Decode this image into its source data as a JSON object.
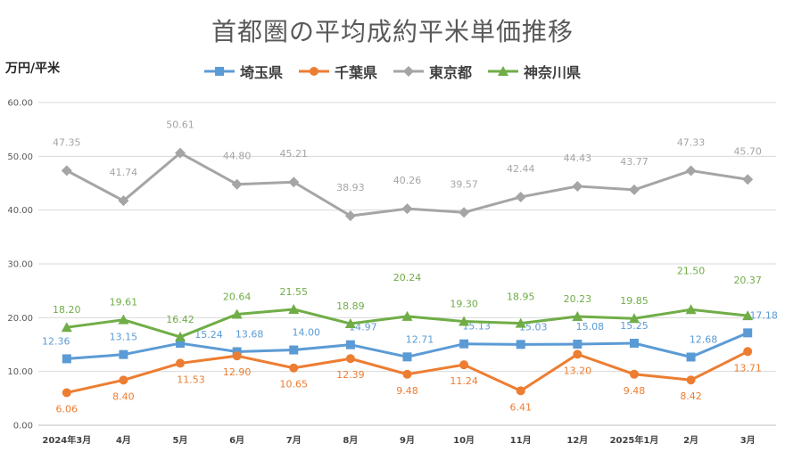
{
  "chart_data": {
    "type": "line",
    "title": "首都圏の平均成約平米単価推移",
    "ylabel": "万円/平米",
    "xlabel": "",
    "ylim": [
      0,
      60
    ],
    "yticks": [
      "0.00",
      "10.00",
      "20.00",
      "30.00",
      "40.00",
      "50.00",
      "60.00"
    ],
    "categories": [
      "2024年3月",
      "4月",
      "5月",
      "6月",
      "7月",
      "8月",
      "9月",
      "10月",
      "11月",
      "12月",
      "2025年1月",
      "2月",
      "3月"
    ],
    "legend_position": "top",
    "grid": true,
    "series": [
      {
        "name": "埼玉県",
        "color": "#5B9BD5",
        "marker": "square",
        "values": [
          12.36,
          13.15,
          15.24,
          13.68,
          14.0,
          14.97,
          12.71,
          15.13,
          15.03,
          15.08,
          15.25,
          12.68,
          17.18
        ],
        "labels": [
          "12.36",
          "13.15",
          "15.24",
          "13.68",
          "14.00",
          "14.97",
          "12.71",
          "15.13",
          "15.03",
          "15.08",
          "15.25",
          "12.68",
          "17.18"
        ]
      },
      {
        "name": "千葉県",
        "color": "#ED7D31",
        "marker": "circle",
        "values": [
          6.06,
          8.4,
          11.53,
          12.9,
          10.65,
          12.39,
          9.48,
          11.24,
          6.41,
          13.2,
          9.48,
          8.42,
          13.71
        ],
        "labels": [
          "6.06",
          "8.40",
          "11.53",
          "12.90",
          "10.65",
          "12.39",
          "9.48",
          "11.24",
          "6.41",
          "13.20",
          "9.48",
          "8.42",
          "13.71"
        ]
      },
      {
        "name": "東京都",
        "color": "#A5A5A5",
        "marker": "diamond",
        "values": [
          47.35,
          41.74,
          50.61,
          44.8,
          45.21,
          38.93,
          40.26,
          39.57,
          42.44,
          44.43,
          43.77,
          47.33,
          45.7
        ],
        "labels": [
          "47.35",
          "41.74",
          "50.61",
          "44.80",
          "45.21",
          "38.93",
          "40.26",
          "39.57",
          "42.44",
          "44.43",
          "43.77",
          "47.33",
          "45.70"
        ]
      },
      {
        "name": "神奈川県",
        "color": "#70AD47",
        "marker": "triangle",
        "values": [
          18.2,
          19.61,
          16.42,
          20.64,
          21.55,
          18.89,
          20.24,
          19.3,
          18.95,
          20.23,
          19.85,
          21.5,
          20.37
        ],
        "labels": [
          "18.20",
          "19.61",
          "16.42",
          "20.64",
          "21.55",
          "18.89",
          "20.24",
          "19.30",
          "18.95",
          "20.23",
          "19.85",
          "21.50",
          "20.37"
        ]
      }
    ]
  }
}
